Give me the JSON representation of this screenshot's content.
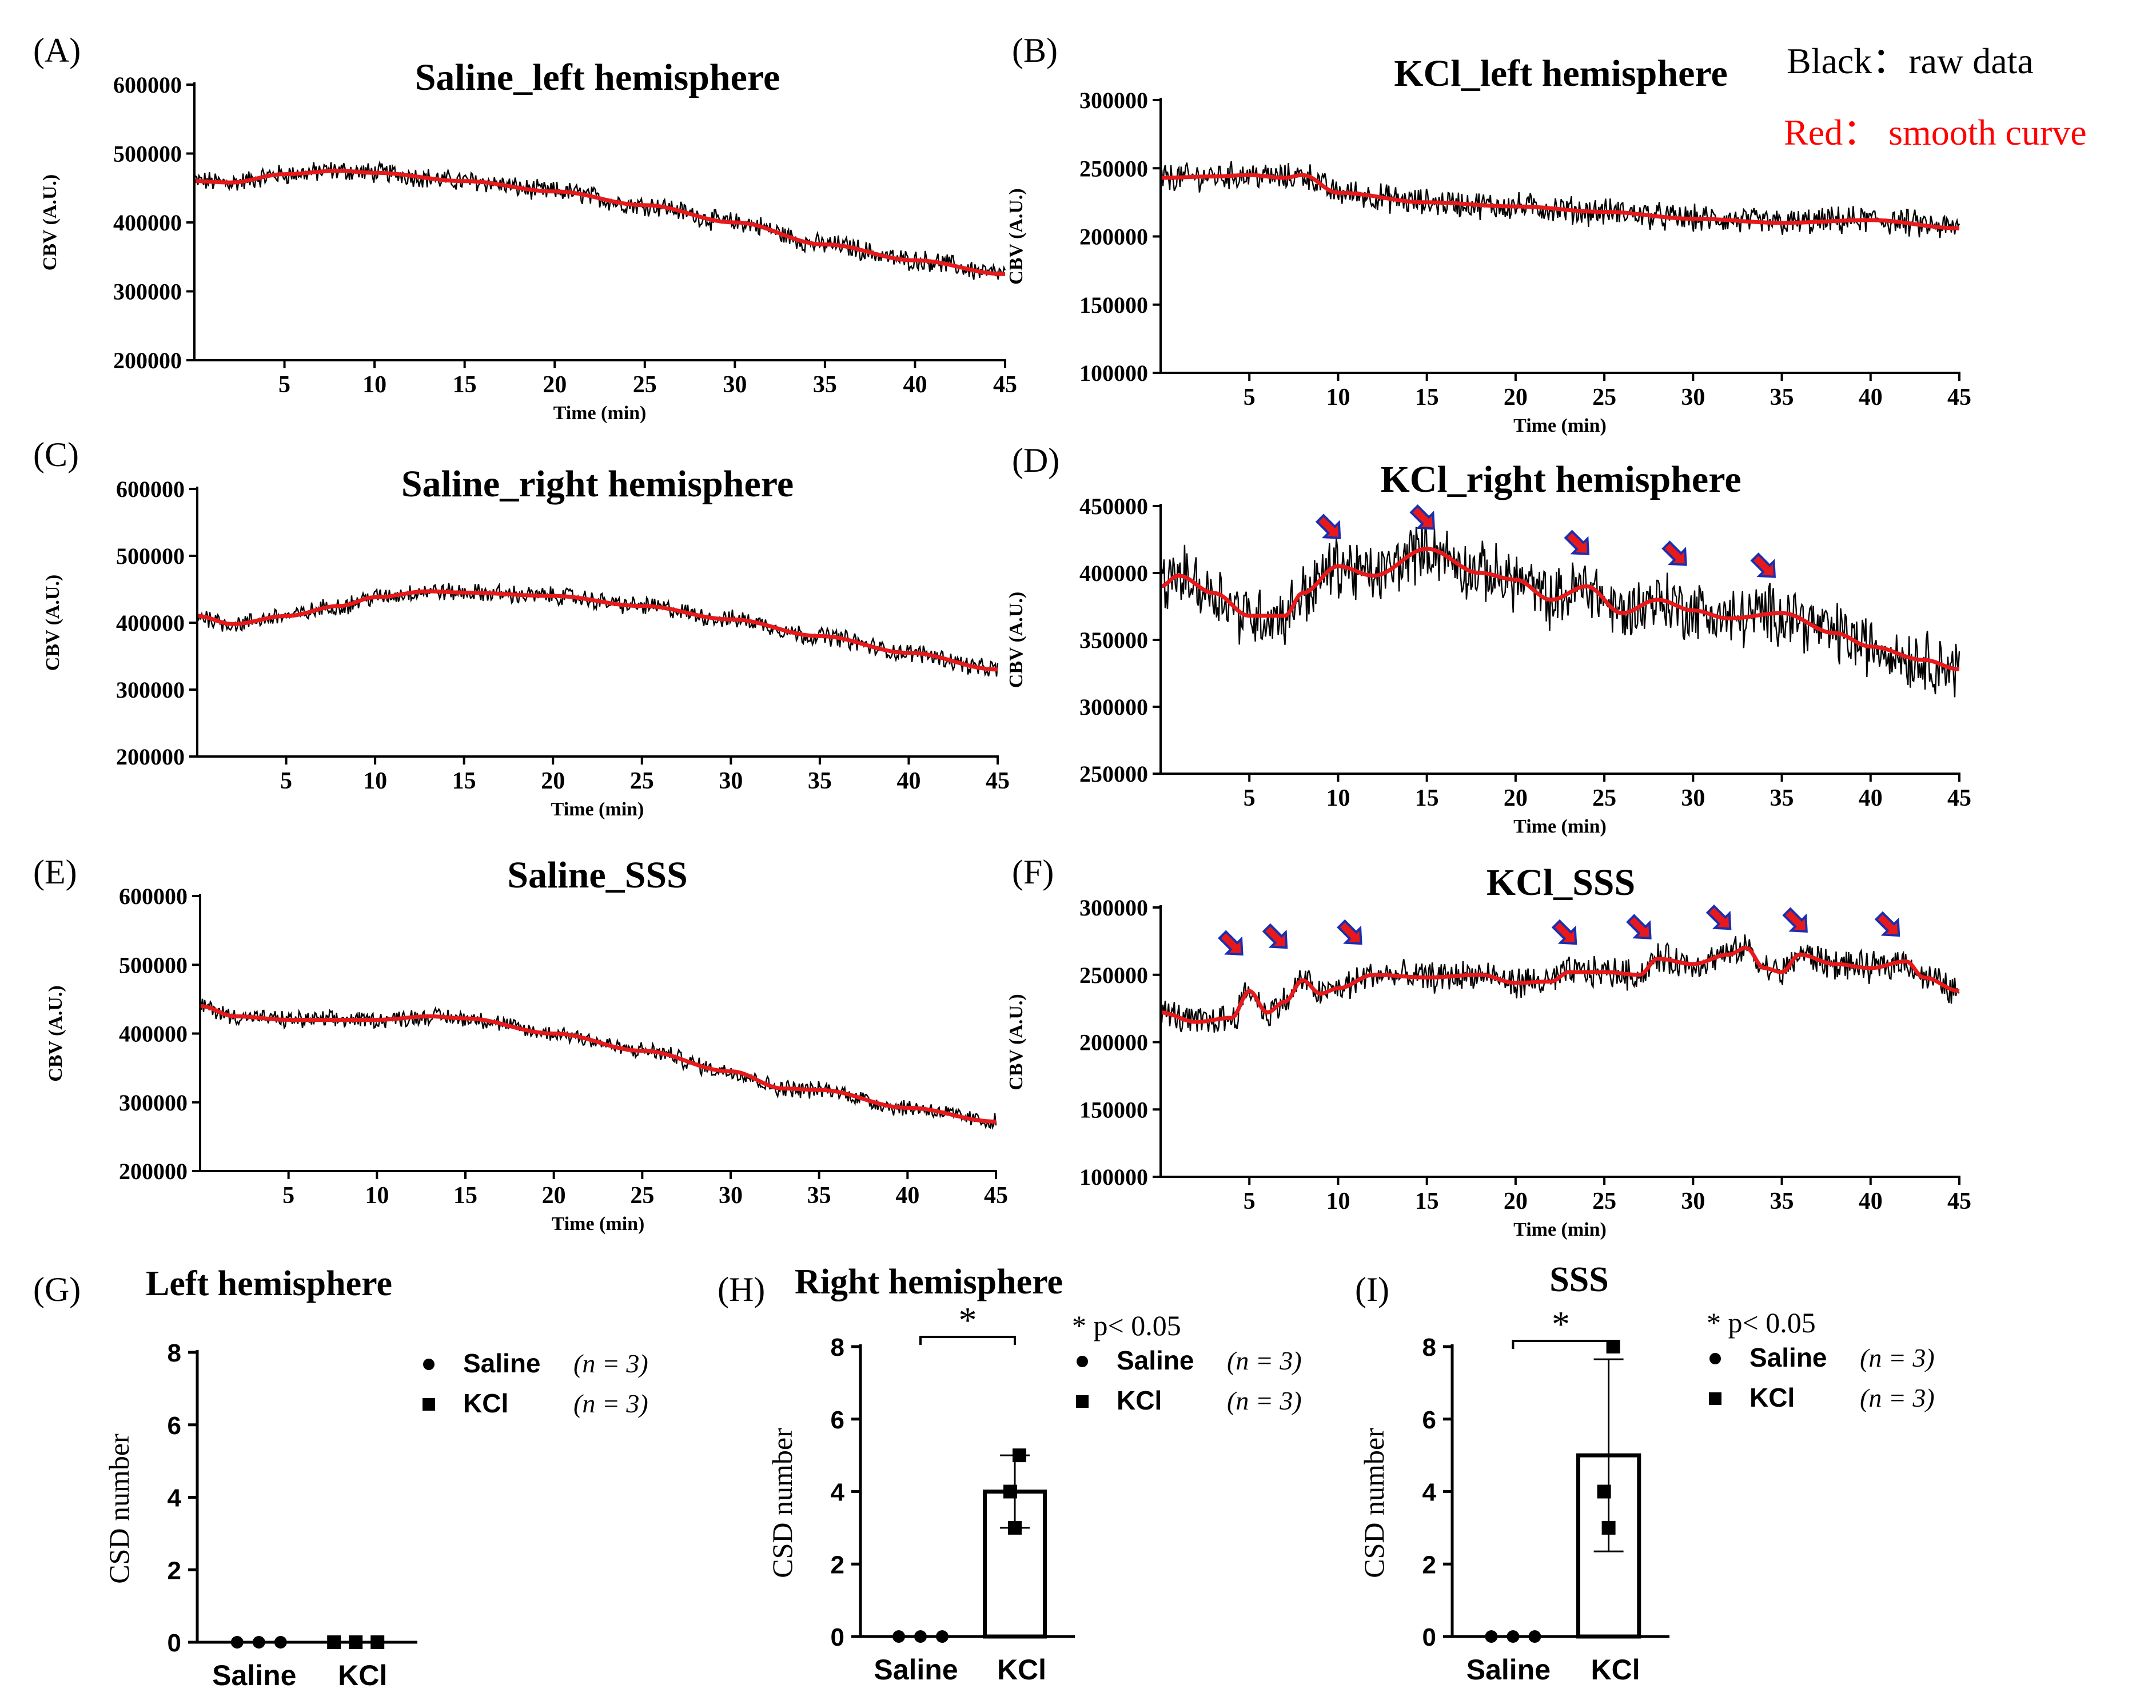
{
  "legend_note": {
    "black": "Black：raw data",
    "red": "Red： smooth curve"
  },
  "colors": {
    "raw": "#000000",
    "smooth": "#e8191b",
    "arrow": "#e8191b",
    "arrow_outline": "#1a2fb0"
  },
  "chart_data": [
    {
      "id": "A",
      "label": "(A)",
      "type": "line",
      "title": "Saline_left hemisphere",
      "xlabel": "Time (min)",
      "ylabel": "CBV (A.U.)",
      "xlim": [
        0,
        45
      ],
      "ylim": [
        200000,
        600000
      ],
      "xticks": [
        5,
        10,
        15,
        20,
        25,
        30,
        35,
        40,
        45
      ],
      "yticks": [
        200000,
        300000,
        400000,
        500000,
        600000
      ],
      "ytick_labels": [
        "200000",
        "300000",
        "400000",
        "500000",
        "600000"
      ],
      "series": [
        {
          "name": "raw data",
          "color": "#000000",
          "noise": 13000
        },
        {
          "name": "smooth curve",
          "color": "#e8191b",
          "x": [
            0,
            2,
            5,
            8,
            10,
            15,
            20,
            25,
            30,
            35,
            40,
            45
          ],
          "y": [
            460000,
            458000,
            470000,
            475000,
            472000,
            460000,
            445000,
            425000,
            400000,
            368000,
            345000,
            325000
          ]
        }
      ],
      "arrows_at": []
    },
    {
      "id": "B",
      "label": "(B)",
      "type": "line",
      "title": "KCl_left hemisphere",
      "xlabel": "Time (min)",
      "ylabel": "CBV (A.U.)",
      "xlim": [
        0,
        45
      ],
      "ylim": [
        100000,
        300000
      ],
      "xticks": [
        5,
        10,
        15,
        20,
        25,
        30,
        35,
        40,
        45
      ],
      "yticks": [
        100000,
        150000,
        200000,
        250000,
        300000
      ],
      "ytick_labels": [
        "100000",
        "150000",
        "200000",
        "250000",
        "300000"
      ],
      "series": [
        {
          "name": "raw data",
          "color": "#000000",
          "noise": 9000
        },
        {
          "name": "smooth curve",
          "color": "#e8191b",
          "x": [
            0,
            3,
            5,
            7,
            8,
            10,
            15,
            20,
            25,
            30,
            35,
            40,
            45
          ],
          "y": [
            243000,
            244000,
            245000,
            243000,
            245000,
            232000,
            225000,
            222000,
            218000,
            213000,
            210000,
            212000,
            206000
          ]
        }
      ],
      "arrows_at": []
    },
    {
      "id": "C",
      "label": "(C)",
      "type": "line",
      "title": "Saline_right hemisphere",
      "xlabel": "Time (min)",
      "ylabel": "CBV (A.U.)",
      "xlim": [
        0,
        45
      ],
      "ylim": [
        200000,
        600000
      ],
      "xticks": [
        5,
        10,
        15,
        20,
        25,
        30,
        35,
        40,
        45
      ],
      "yticks": [
        200000,
        300000,
        400000,
        500000,
        600000
      ],
      "ytick_labels": [
        "200000",
        "300000",
        "400000",
        "500000",
        "600000"
      ],
      "series": [
        {
          "name": "raw data",
          "color": "#000000",
          "noise": 12000
        },
        {
          "name": "smooth curve",
          "color": "#e8191b",
          "x": [
            0,
            2,
            5,
            8,
            10,
            13,
            15,
            20,
            25,
            30,
            35,
            40,
            45
          ],
          "y": [
            410000,
            398000,
            410000,
            425000,
            438000,
            447000,
            445000,
            440000,
            425000,
            405000,
            380000,
            355000,
            330000
          ]
        }
      ],
      "arrows_at": []
    },
    {
      "id": "D",
      "label": "(D)",
      "type": "line",
      "title": "KCl_right hemisphere",
      "xlabel": "Time (min)",
      "ylabel": "CBV (A.U.)",
      "xlim": [
        0,
        45
      ],
      "ylim": [
        250000,
        450000
      ],
      "xticks": [
        5,
        10,
        15,
        20,
        25,
        30,
        35,
        40,
        45
      ],
      "yticks": [
        250000,
        300000,
        350000,
        400000,
        450000
      ],
      "ytick_labels": [
        "250000",
        "300000",
        "350000",
        "400000",
        "450000"
      ],
      "series": [
        {
          "name": "raw data",
          "color": "#000000",
          "noise": 20000
        },
        {
          "name": "smooth curve",
          "color": "#e8191b",
          "x": [
            0,
            1,
            3,
            5,
            7,
            8,
            10,
            12,
            15,
            18,
            20,
            22,
            24,
            26,
            28,
            30,
            32,
            35,
            38,
            40,
            43,
            45
          ],
          "y": [
            390000,
            398000,
            385000,
            368000,
            368000,
            385000,
            405000,
            398000,
            418000,
            400000,
            395000,
            380000,
            390000,
            370000,
            380000,
            372000,
            366000,
            370000,
            355000,
            345000,
            335000,
            328000
          ]
        }
      ],
      "arrows_at": [
        {
          "x": 9.5,
          "y": 434000
        },
        {
          "x": 14.8,
          "y": 441000
        },
        {
          "x": 23.5,
          "y": 422000
        },
        {
          "x": 29,
          "y": 414000
        },
        {
          "x": 34,
          "y": 405000
        }
      ]
    },
    {
      "id": "E",
      "label": "(E)",
      "type": "line",
      "title": "Saline_SSS",
      "xlabel": "Time (min)",
      "ylabel": "CBV (A.U.)",
      "xlim": [
        0,
        45
      ],
      "ylim": [
        200000,
        600000
      ],
      "xticks": [
        5,
        10,
        15,
        20,
        25,
        30,
        35,
        40,
        45
      ],
      "yticks": [
        200000,
        300000,
        400000,
        500000,
        600000
      ],
      "ytick_labels": [
        "200000",
        "300000",
        "400000",
        "500000",
        "600000"
      ],
      "series": [
        {
          "name": "raw data",
          "color": "#000000",
          "noise": 11000
        },
        {
          "name": "smooth curve",
          "color": "#e8191b",
          "x": [
            0,
            2,
            5,
            10,
            13,
            15,
            20,
            25,
            30,
            33,
            35,
            40,
            45
          ],
          "y": [
            440000,
            425000,
            420000,
            420000,
            425000,
            422000,
            400000,
            375000,
            345000,
            320000,
            318000,
            292000,
            272000
          ]
        }
      ],
      "arrows_at": []
    },
    {
      "id": "F",
      "label": "(F)",
      "type": "line",
      "title": "KCl_SSS",
      "xlabel": "Time (min)",
      "ylabel": "CBV (A.U.)",
      "xlim": [
        0,
        45
      ],
      "ylim": [
        100000,
        300000
      ],
      "xticks": [
        5,
        10,
        15,
        20,
        25,
        30,
        35,
        40,
        45
      ],
      "yticks": [
        100000,
        150000,
        200000,
        250000,
        300000
      ],
      "ytick_labels": [
        "100000",
        "150000",
        "200000",
        "250000",
        "300000"
      ],
      "series": [
        {
          "name": "raw data",
          "color": "#000000",
          "noise": 10000
        },
        {
          "name": "smooth curve",
          "color": "#e8191b",
          "x": [
            0,
            2,
            4,
            5,
            6,
            7,
            8,
            9,
            10,
            12,
            15,
            18,
            20,
            22,
            23,
            25,
            27,
            28,
            30,
            32,
            33,
            34,
            35,
            36,
            38,
            40,
            42,
            43,
            45
          ],
          "y": [
            222000,
            215000,
            218000,
            238000,
            222000,
            230000,
            246000,
            236000,
            240000,
            250000,
            248000,
            250000,
            244000,
            245000,
            252000,
            252000,
            250000,
            262000,
            258000,
            265000,
            270000,
            255000,
            252000,
            265000,
            258000,
            255000,
            260000,
            248000,
            238000
          ]
        }
      ],
      "arrows_at": [
        {
          "x": 4,
          "y": 273000
        },
        {
          "x": 6.5,
          "y": 278000
        },
        {
          "x": 10.7,
          "y": 281000
        },
        {
          "x": 22.8,
          "y": 281000
        },
        {
          "x": 27,
          "y": 285000
        },
        {
          "x": 31.5,
          "y": 292000
        },
        {
          "x": 35.8,
          "y": 290000
        },
        {
          "x": 41,
          "y": 287000
        }
      ]
    },
    {
      "id": "G",
      "label": "(G)",
      "type": "bar",
      "title": "Left hemisphere",
      "ylabel": "CSD number",
      "ylim": [
        0,
        8
      ],
      "yticks": [
        0,
        2,
        4,
        6,
        8
      ],
      "categories": [
        "Saline",
        "KCl"
      ],
      "means": [
        0,
        0
      ],
      "sd": [
        0,
        0
      ],
      "points": [
        [
          0,
          0,
          0
        ],
        [
          0,
          0,
          0
        ]
      ],
      "significance": "",
      "p_note": "",
      "legend": [
        {
          "marker": "circle",
          "name": "Saline",
          "n": "(n = 3)"
        },
        {
          "marker": "square",
          "name": "KCl",
          "n": "(n = 3)"
        }
      ]
    },
    {
      "id": "H",
      "label": "(H)",
      "type": "bar",
      "title": "Right hemisphere",
      "ylabel": "CSD number",
      "ylim": [
        0,
        8
      ],
      "yticks": [
        0,
        2,
        4,
        6,
        8
      ],
      "categories": [
        "Saline",
        "KCl"
      ],
      "means": [
        0,
        4
      ],
      "sd": [
        0,
        1
      ],
      "points": [
        [
          0,
          0,
          0
        ],
        [
          5,
          4,
          3
        ]
      ],
      "significance": "*",
      "p_note": "* p< 0.05",
      "legend": [
        {
          "marker": "circle",
          "name": "Saline",
          "n": "(n = 3)"
        },
        {
          "marker": "square",
          "name": "KCl",
          "n": "(n = 3)"
        }
      ]
    },
    {
      "id": "I",
      "label": "(I)",
      "type": "bar",
      "title": "SSS",
      "ylabel": "CSD number",
      "ylim": [
        0,
        8
      ],
      "yticks": [
        0,
        2,
        4,
        6,
        8
      ],
      "categories": [
        "Saline",
        "KCl"
      ],
      "means": [
        0,
        5
      ],
      "sd": [
        0,
        2.65
      ],
      "points": [
        [
          0,
          0,
          0
        ],
        [
          8,
          4,
          3
        ]
      ],
      "significance": "*",
      "p_note": "* p< 0.05",
      "legend": [
        {
          "marker": "circle",
          "name": "Saline",
          "n": "(n = 3)"
        },
        {
          "marker": "square",
          "name": "KCl",
          "n": "(n = 3)"
        }
      ]
    }
  ]
}
